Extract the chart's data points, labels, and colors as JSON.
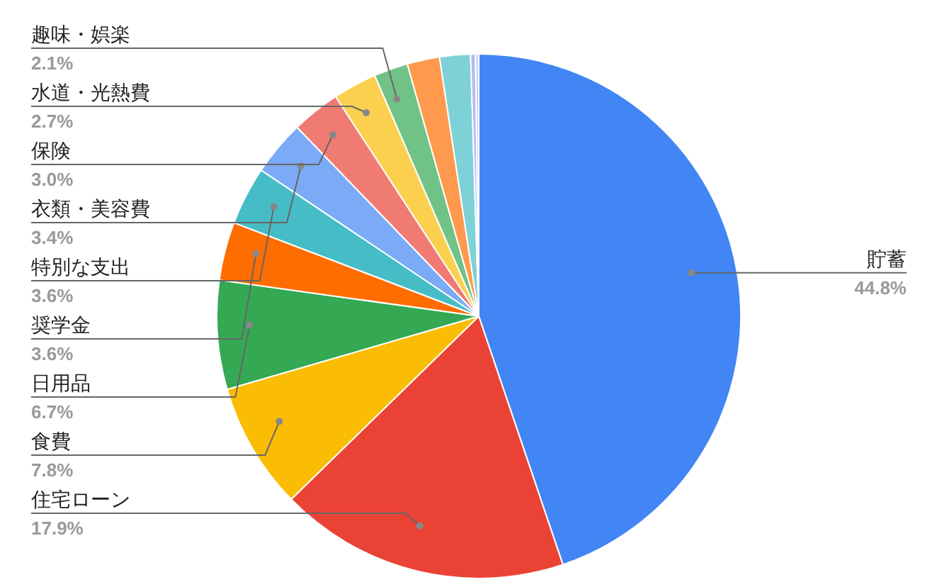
{
  "chart_data": {
    "type": "pie",
    "categories": [
      "貯蓄",
      "住宅ローン",
      "食費",
      "日用品",
      "奨学金",
      "特別な支出",
      "衣類・美容費",
      "保険",
      "水道・光熱費",
      "趣味・娯楽",
      null,
      null,
      null,
      null
    ],
    "values": [
      44.8,
      17.9,
      7.8,
      6.7,
      3.6,
      3.6,
      3.4,
      3.0,
      2.7,
      2.1,
      2.0,
      1.9,
      0.3,
      0.2
    ],
    "value_labels": [
      "44.8%",
      "17.9%",
      "7.8%",
      "6.7%",
      "3.6%",
      "3.6%",
      "3.4%",
      "3.0%",
      "2.7%",
      "2.1%",
      null,
      null,
      null,
      null
    ],
    "colors": [
      "#4285f4",
      "#ea4335",
      "#fbbc04",
      "#34a853",
      "#ff6d01",
      "#46bdc6",
      "#7baaf7",
      "#f07b72",
      "#fcd04f",
      "#71c287",
      "#ff994d",
      "#7ed1d7",
      "#b3b9f2",
      "#c5d0f5"
    ]
  }
}
